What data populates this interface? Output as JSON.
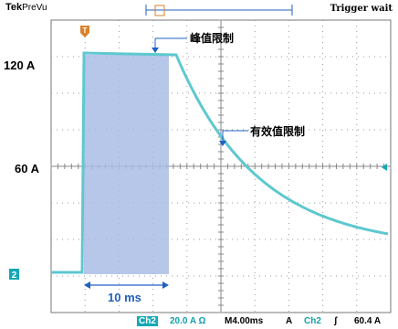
{
  "header": {
    "brand": "Tek",
    "mode": "PreVu",
    "trigger_status": "Trigger wait"
  },
  "y_labels": {
    "upper": "120 A",
    "middle": "60 A"
  },
  "annotations": {
    "peak_limit": "峰值限制",
    "rms_limit": "有效值限制",
    "duration": "10 ms"
  },
  "markers": {
    "channel": "2",
    "trigger": "T"
  },
  "status_bar": {
    "channel": "Ch2",
    "scale": "20.0 A Ω",
    "timebase": "M4.00ms",
    "coupling": "A",
    "trigger_source": "Ch2",
    "trigger_slope": "ʃ",
    "trigger_level": "60.4 A"
  },
  "colors": {
    "trace": "#5ec8d0",
    "highlight": "#a9bde6",
    "accent": "#2060c0",
    "marker": "#d9822b",
    "channel": "#14a8b4"
  }
}
